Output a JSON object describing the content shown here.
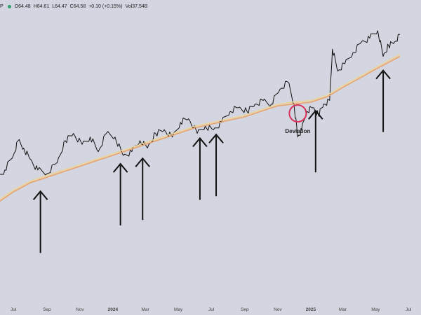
{
  "header": {
    "symbol_tail": "P",
    "open": "O64.48",
    "high": "H64.61",
    "low": "L64.47",
    "close": "C64.58",
    "change": "+0.10 (+0.15%)",
    "volume": "Vol37.54B",
    "status_color": "#2f9e6a"
  },
  "chart_data": {
    "type": "line",
    "x_tick_labels": [
      "Jul",
      "Sep",
      "Nov",
      "2024",
      "Mar",
      "May",
      "Jul",
      "Sep",
      "Nov",
      "2025",
      "Mar",
      "May",
      "Jul"
    ],
    "series": [
      {
        "color": "#111111",
        "x": [
          "2023-06-01",
          "2023-06-15",
          "2023-07-01",
          "2023-07-10",
          "2023-07-20",
          "2023-08-01",
          "2023-08-15",
          "2023-09-01",
          "2023-09-20",
          "2023-10-05",
          "2023-10-20",
          "2023-11-05",
          "2023-11-20",
          "2023-12-05",
          "2023-12-20",
          "2024-01-05",
          "2024-01-20",
          "2024-02-05",
          "2024-02-20",
          "2024-03-05",
          "2024-03-20",
          "2024-04-05",
          "2024-04-20",
          "2024-05-05",
          "2024-05-20",
          "2024-06-05",
          "2024-06-20",
          "2024-07-05",
          "2024-07-20",
          "2024-08-05",
          "2024-08-20",
          "2024-09-05",
          "2024-09-20",
          "2024-10-05",
          "2024-10-20",
          "2024-11-05",
          "2024-11-20",
          "2024-12-01",
          "2024-12-08",
          "2024-12-15",
          "2024-12-25",
          "2025-01-05",
          "2025-01-15",
          "2025-01-25",
          "2025-02-05",
          "2025-02-10",
          "2025-02-20",
          "2025-03-05",
          "2025-03-20",
          "2025-04-05",
          "2025-04-20",
          "2025-05-05",
          "2025-05-15",
          "2025-05-25",
          "2025-06-05",
          "2025-06-15"
        ],
        "y": [
          42,
          44,
          48,
          52,
          50,
          47,
          44,
          43,
          46,
          52,
          54,
          51,
          53,
          49,
          54,
          53,
          48,
          49,
          52,
          50,
          54,
          55,
          53,
          57,
          58,
          54,
          56,
          55,
          57,
          60,
          61,
          60,
          62,
          63,
          62,
          66,
          68,
          62,
          53,
          55,
          60,
          61,
          59,
          62,
          63,
          77,
          71,
          73,
          76,
          79,
          80,
          82,
          75,
          78,
          79,
          81
        ]
      },
      {
        "color": "#e8a06a",
        "x": [
          "2023-06-01",
          "2023-07-01",
          "2023-08-01",
          "2023-09-01",
          "2023-10-01",
          "2023-11-01",
          "2023-12-01",
          "2024-01-01",
          "2024-02-01",
          "2024-03-01",
          "2024-04-01",
          "2024-05-01",
          "2024-06-01",
          "2024-07-01",
          "2024-08-01",
          "2024-09-01",
          "2024-10-01",
          "2024-11-01",
          "2024-12-01",
          "2025-01-01",
          "2025-02-01",
          "2025-03-01",
          "2025-04-01",
          "2025-05-01",
          "2025-06-15"
        ],
        "y": [
          35,
          38,
          40.5,
          42,
          43.5,
          45,
          46.5,
          48,
          49.5,
          51,
          52.5,
          54,
          55.5,
          56.5,
          57.5,
          58.5,
          60,
          61.5,
          62,
          62.5,
          64,
          66.5,
          69,
          71.5,
          75
        ]
      },
      {
        "color": "#e8d7a0",
        "x": [
          "2023-06-01",
          "2023-07-01",
          "2023-08-01",
          "2023-09-01",
          "2023-10-01",
          "2023-11-01",
          "2023-12-01",
          "2024-01-01",
          "2024-02-01",
          "2024-03-01",
          "2024-04-01",
          "2024-05-01",
          "2024-06-01",
          "2024-07-01",
          "2024-08-01",
          "2024-09-01",
          "2024-10-01",
          "2024-11-01",
          "2024-12-01",
          "2025-01-01",
          "2025-02-01",
          "2025-03-01",
          "2025-04-01",
          "2025-05-01",
          "2025-06-15"
        ],
        "y": [
          35.6,
          38.6,
          41,
          42.6,
          44,
          45.5,
          47,
          48.5,
          50,
          51.5,
          53,
          54.5,
          56,
          57,
          58,
          59,
          60.5,
          62,
          62.6,
          63,
          64.5,
          67,
          69.5,
          72,
          75.6
        ]
      }
    ],
    "annotations": [
      {
        "type": "up-arrow",
        "x": "2023-08-20"
      },
      {
        "type": "up-arrow",
        "x": "2024-01-15"
      },
      {
        "type": "up-arrow",
        "x": "2024-02-25"
      },
      {
        "type": "up-arrow",
        "x": "2024-06-10"
      },
      {
        "type": "up-arrow",
        "x": "2024-07-10"
      },
      {
        "type": "up-arrow",
        "x": "2025-01-10"
      },
      {
        "type": "up-arrow",
        "x": "2025-05-15"
      },
      {
        "type": "circle",
        "x": "2024-12-08",
        "label": "Deviation",
        "color": "#d9315b"
      }
    ]
  }
}
